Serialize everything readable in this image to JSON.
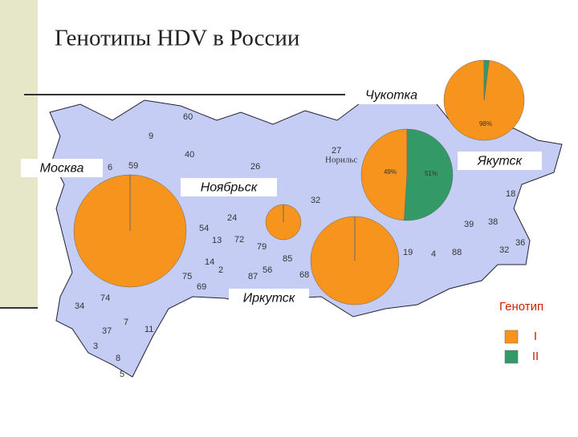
{
  "chart_data": {
    "type": "pie",
    "title": "Генотипы HDV в России",
    "legend_title": "Генотип",
    "series": [
      {
        "name": "I",
        "color": "#f7941d"
      },
      {
        "name": "II",
        "color": "#339966"
      }
    ],
    "pies": [
      {
        "label": "Чукотка",
        "values": [
          98,
          2
        ],
        "value_labels": [
          "98%",
          null
        ]
      },
      {
        "label": "Москва",
        "values": [
          100,
          0
        ],
        "value_labels": [
          null,
          null
        ]
      },
      {
        "label": "Ноябрьск",
        "values": [
          100,
          0
        ],
        "value_labels": [
          null,
          null
        ]
      },
      {
        "label": "Якутск",
        "values": [
          49,
          51
        ],
        "value_labels": [
          "49%",
          "51%"
        ]
      },
      {
        "label": "Иркутск",
        "values": [
          100,
          0
        ],
        "value_labels": [
          null,
          null
        ]
      }
    ]
  },
  "map": {
    "city": "Норильс",
    "region_numbers": [
      "60",
      "9",
      "27",
      "40",
      "26",
      "59",
      "6",
      "32",
      "24",
      "54",
      "13",
      "72",
      "79",
      "14",
      "85",
      "56",
      "2",
      "87",
      "68",
      "75",
      "69",
      "74",
      "34",
      "7",
      "37",
      "11",
      "3",
      "8",
      "5",
      "39",
      "38",
      "36",
      "32",
      "88",
      "4",
      "19",
      "18"
    ]
  }
}
